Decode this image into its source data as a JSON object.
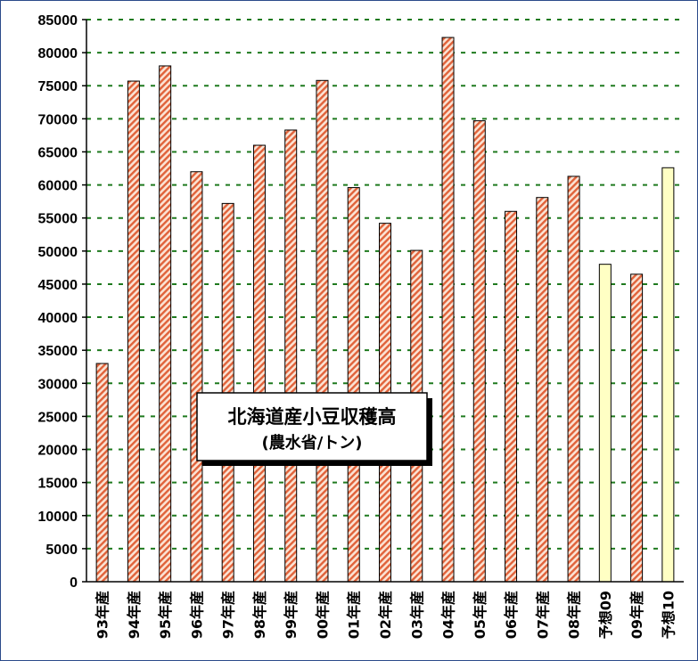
{
  "chart_data": {
    "type": "bar",
    "title": "北海道産小豆収穫高",
    "subtitle": "(農水省/トン)",
    "xlabel": "",
    "ylabel": "",
    "ylim": [
      0,
      85000
    ],
    "ytick_step": 5000,
    "ytick_labels": [
      "0",
      "5000",
      "10000",
      "15000",
      "20000",
      "25000",
      "30000",
      "35000",
      "40000",
      "45000",
      "50000",
      "55000",
      "60000",
      "65000",
      "70000",
      "75000",
      "80000",
      "85000"
    ],
    "grid": true,
    "legend": "none",
    "categories": [
      "93年産",
      "94年産",
      "95年産",
      "96年産",
      "97年産",
      "98年産",
      "99年産",
      "00年産",
      "01年産",
      "02年産",
      "03年産",
      "04年産",
      "05年産",
      "06年産",
      "07年産",
      "08年産",
      "予想09",
      "09年産",
      "予想10"
    ],
    "values": [
      33000,
      75700,
      78000,
      62000,
      57200,
      66000,
      68300,
      75800,
      59600,
      54200,
      50100,
      82300,
      69700,
      56000,
      58100,
      61300,
      48000,
      46500,
      62600
    ],
    "kinds": [
      "actual",
      "actual",
      "actual",
      "actual",
      "actual",
      "actual",
      "actual",
      "actual",
      "actual",
      "actual",
      "actual",
      "actual",
      "actual",
      "actual",
      "actual",
      "actual",
      "forecast",
      "actual",
      "forecast"
    ],
    "colors": {
      "actual_stripe": "#e0623a",
      "actual_bg": "#fbe3d4",
      "forecast_fill": "#ffffc4",
      "grid": "#1f7a1f",
      "border": "#000000"
    }
  }
}
